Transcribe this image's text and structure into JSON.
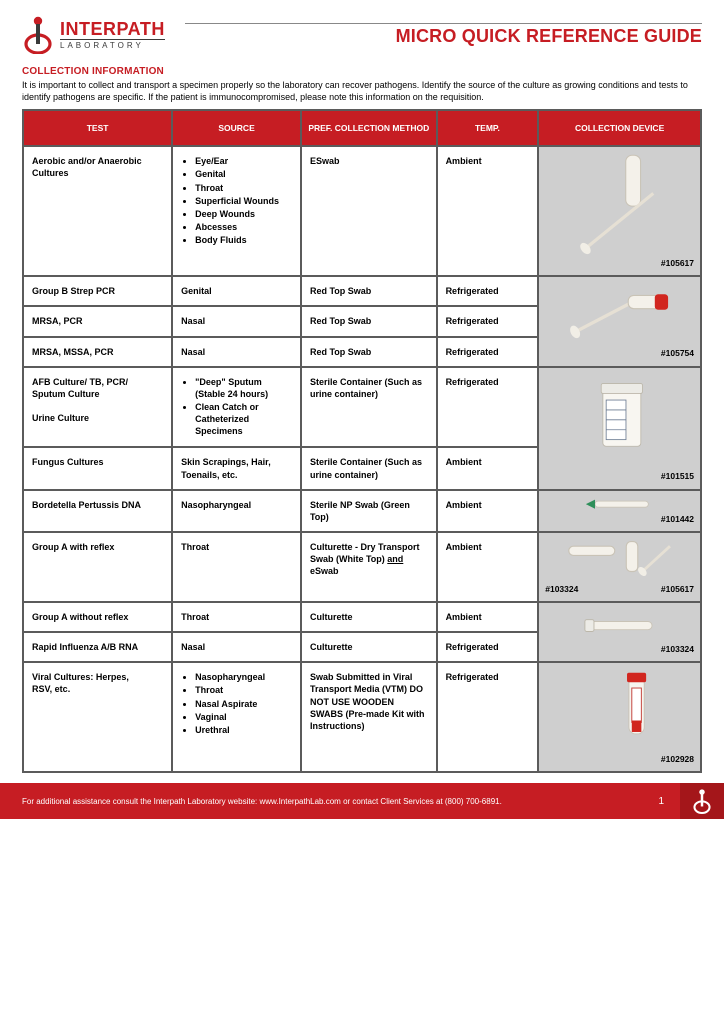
{
  "brand": {
    "logo_main": "INTERPATH",
    "logo_sub": "LABORATORY",
    "accent_color": "#c61d23",
    "text_color": "#3a3a3a"
  },
  "title": "MICRO QUICK REFERENCE GUIDE",
  "section_heading": "COLLECTION INFORMATION",
  "intro_text": "It is important to collect and transport a specimen properly so the laboratory can recover pathogens.  Identify the source of the culture as growing conditions and tests to identify pathogens are specific. If the patient is immunocompromised, please note this information on the requisition.",
  "columns": {
    "test": "TEST",
    "source": "SOURCE",
    "method": "PREF. COLLECTION METHOD",
    "temp": "TEMP.",
    "device": "COLLECTION DEVICE"
  },
  "rows": {
    "r1": {
      "test": "Aerobic and/or Anaerobic Cultures",
      "source_list": [
        "Eye/Ear",
        "Genital",
        "Throat",
        "Superficial Wounds",
        "Deep Wounds",
        "Abcesses",
        "Body Fluids"
      ],
      "method": "ESwab",
      "temp": "Ambient",
      "device_id": "#105617"
    },
    "r2": {
      "test": "Group B Strep PCR",
      "source": "Genital",
      "method": "Red Top Swab",
      "temp": "Refrigerated"
    },
    "r3": {
      "test": "MRSA, PCR",
      "source": "Nasal",
      "method": "Red Top Swab",
      "temp": "Refrigerated"
    },
    "r4": {
      "test": "MRSA, MSSA, PCR",
      "source": "Nasal",
      "method": "Red Top Swab",
      "temp": "Refrigerated",
      "device_id": "#105754"
    },
    "r5": {
      "test": "AFB Culture/ TB, PCR/ Sputum Culture\n\nUrine Culture",
      "source_list": [
        "\"Deep\" Sputum (Stable 24 hours)",
        "Clean Catch or Catheterized Specimens"
      ],
      "method": "Sterile Container (Such as urine container)",
      "temp": "Refrigerated"
    },
    "r6": {
      "test": "Fungus Cultures",
      "source": "Skin Scrapings, Hair, Toenails, etc.",
      "method": "Sterile Container (Such as urine container)",
      "temp": "Ambient",
      "device_id": "#101515"
    },
    "r7": {
      "test": "Bordetella Pertussis DNA",
      "source": "Nasopharyngeal",
      "method": "Sterile NP Swab (Green Top)",
      "temp": "Ambient",
      "device_id": "#101442"
    },
    "r8": {
      "test": "Group A with reflex",
      "source": "Throat",
      "method_pre": "Culturette - Dry Transport Swab (White Top)  ",
      "method_underlined": "and",
      "method_post": " eSwab",
      "temp": "Ambient",
      "device_id_a": "#103324",
      "device_id_b": "#105617"
    },
    "r9": {
      "test": "Group A without reflex",
      "source": "Throat",
      "method": "Culturette",
      "temp": "Ambient"
    },
    "r10": {
      "test": "Rapid Influenza A/B RNA",
      "source": "Nasal",
      "method": "Culturette",
      "temp": "Refrigerated",
      "device_id": "#103324"
    },
    "r11": {
      "test": "Viral Cultures: Herpes,\nRSV, etc.",
      "source_list": [
        "Nasopharyngeal",
        "Throat",
        "Nasal Aspirate",
        "Vaginal",
        "Urethral"
      ],
      "method": "Swab Submitted in Viral Transport Media (VTM) DO NOT USE WOODEN SWABS (Pre-made Kit with Instructions)",
      "temp": "Refrigerated",
      "device_id": "#102928"
    }
  },
  "footer": {
    "text": "For additional assistance consult the Interpath Laboratory website: www.InterpathLab.com or contact Client Services at (800) 700-6891.",
    "page": "1"
  }
}
